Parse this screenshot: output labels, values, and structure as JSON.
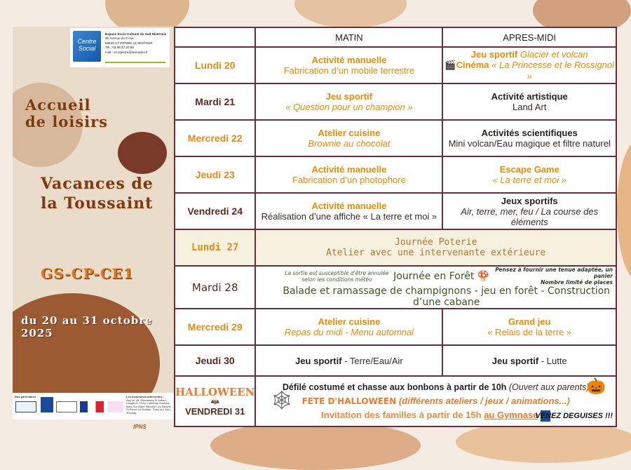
{
  "sidebar": {
    "org_name": "Espace Socio Culturel du Sud Nivernais",
    "address": "35 Avenue du 8 mai",
    "city": "58240 ST PIERRE LE MOÛTIER",
    "phone": "Tél : 03.86.37.20.58",
    "email": "mail : cs.stpierre@wanadoo.fr",
    "logo_text": "Centre Social",
    "title1": "Accueil de loisirs",
    "title2": "Vacances de la Toussaint",
    "level": "GS-CP-CE1",
    "dates": "du 20 au 31 octobre 2025",
    "partners_label": "Nos partenaires",
    "communes_label": "Les communes adhérentes :",
    "communes": "Azy Le Vif, Chantenay St Imbert, Langeron, Livry, Luthenay Uxeloup, Mars Sur Allier, Neuville Les Decize, St Pierre Le Moûtier, Toury sur Jour, Tresnay",
    "ipns": "IPNS"
  },
  "table": {
    "headers": [
      "",
      "MATIN",
      "APRES-MIDI"
    ],
    "rows": [
      {
        "day": "Lundi 20",
        "am_title": "Activité manuelle",
        "am_sub": "Fabrication d’un mobile terrestre",
        "pm_title": "Jeu sportif",
        "pm_title_it": "Glacier et volcan",
        "pm_sub": "Cinéma",
        "pm_sub_it": "« La Princesse et le Rossignol »"
      },
      {
        "day": "Mardi 21",
        "am_title": "Jeu sportif",
        "am_sub": "« Question pour un champion »",
        "pm_title": "Activité artistique",
        "pm_sub": "Land Art"
      },
      {
        "day": "Mercredi 22",
        "am_title": "Atelier cuisine",
        "am_sub": "Brownie au chocolat",
        "pm_title": "Activités scientifiques",
        "pm_sub": "Mini volcan/Eau magique et filtre naturel"
      },
      {
        "day": "Jeudi 23",
        "am_title": "Activité manuelle",
        "am_sub": "Fabrication d’un photophore",
        "pm_title": "Escape Game",
        "pm_sub": "« La terre et moi »"
      },
      {
        "day": "Vendredi 24",
        "am_title": "Activité manuelle",
        "am_sub": "Réalisation d’une affiche « La terre et moi »",
        "pm_title": "Jeux sportifs",
        "pm_sub": "Air, terre, mer, feu / La course des éléments"
      },
      {
        "day": "Lundi 27",
        "line1": "Journée Poterie",
        "line2": "Atelier avec une intervenante extérieure"
      },
      {
        "day": "Mardi 28",
        "note_left": "La sortie est susceptible d'être annulée selon les conditions météo",
        "title": "Journée en Forêt",
        "note_right1": "Pensez à fournir une tenue adaptée, un panier",
        "note_right2": "Nombre limité de places",
        "line": "Balade et ramassage de champignons - jeu en forêt - Construction d’une cabane"
      },
      {
        "day": "Mercredi 29",
        "am_title": "Atelier cuisine",
        "am_sub": "Repas du midi - Menu automnal",
        "pm_title": "Grand jeu",
        "pm_sub": "« Relais de la terre »"
      },
      {
        "day": "Jeudi 30",
        "am_title": "Jeu sportif",
        "am_sub": " - Terre/Eau/Air",
        "pm_title": "Jeu sportif",
        "pm_sub": " - Lutte"
      },
      {
        "day": "VENDREDI 31",
        "badge": "HALLOWEEN",
        "line1": "Défilé costumé et chasse aux bonbons à partir de 10h",
        "line1_it": "(Ouvert aux parents)",
        "line2": "FETE D'HALLOWEEN",
        "line2_it": "(différents ateliers / jeux / animations...)",
        "line3": "Invitation des familles à partir de 15h",
        "line3_u": "au Gymnase",
        "slogan": "VENEZ DEGUISES !!!"
      }
    ]
  },
  "colors": {
    "accent": "#ef8a00",
    "border": "#6b2d3a",
    "forest": "#3d5a1a",
    "day": "#5a2a1e"
  }
}
